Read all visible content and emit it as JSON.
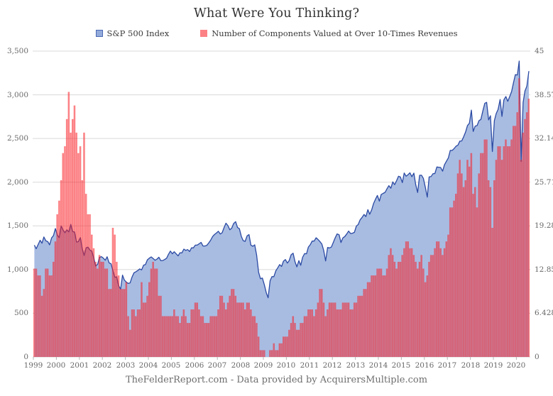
{
  "title": "What Were You Thinking?",
  "footer": "TheFelderReport.com - Data provided by AcquirersMultiple.com",
  "legend": {
    "items": [
      {
        "label": "S&P 500 Index",
        "swatch_fill": "#93abdb",
        "swatch_border": "#4c69b4"
      },
      {
        "label": "Number of Components Valued at Over 10-Times Revenues",
        "swatch_fill": "#fb8185",
        "swatch_border": "#fb8185"
      }
    ]
  },
  "colors": {
    "area_fill": "#a8bce2",
    "area_line": "#2b4aa3",
    "bar_fill": "rgba(249,28,34,0.55)",
    "grid": "#d9d9d9",
    "axis_tick": "#b5b5b5",
    "label_text": "#696969"
  },
  "chart_data": {
    "type": "combo",
    "title": "What Were You Thinking?",
    "x_start_year": 1999,
    "x_interval": "monthly",
    "x_axis": {
      "ticks": [
        1999,
        2000,
        2001,
        2002,
        2003,
        2004,
        2005,
        2006,
        2007,
        2008,
        2009,
        2010,
        2011,
        2012,
        2013,
        2014,
        2015,
        2016,
        2017,
        2018,
        2019,
        2020
      ]
    },
    "left_axis": {
      "min": 0,
      "max": 3500,
      "step": 500,
      "series": "S&P 500 Index"
    },
    "right_axis": {
      "min": 0,
      "max": 45,
      "step": 5,
      "series": "Number of Components Valued at Over 10-Times Revenues"
    },
    "grid": true,
    "legend_position": "top",
    "series": [
      {
        "name": "S&P 500 Index",
        "type": "area",
        "axis": "left",
        "values": [
          1280,
          1238,
          1286,
          1335,
          1302,
          1373,
          1329,
          1320,
          1283,
          1363,
          1389,
          1469,
          1394,
          1366,
          1499,
          1452,
          1421,
          1455,
          1431,
          1518,
          1436,
          1429,
          1315,
          1320,
          1366,
          1240,
          1160,
          1249,
          1256,
          1224,
          1211,
          1134,
          1041,
          1060,
          1139,
          1148,
          1130,
          1107,
          1147,
          1077,
          1067,
          990,
          912,
          916,
          815,
          777,
          936,
          880,
          856,
          841,
          848,
          917,
          964,
          975,
          990,
          1008,
          996,
          1051,
          1058,
          1112,
          1131,
          1145,
          1126,
          1107,
          1121,
          1141,
          1102,
          1104,
          1115,
          1130,
          1174,
          1212,
          1181,
          1204,
          1181,
          1157,
          1192,
          1191,
          1234,
          1220,
          1229,
          1207,
          1249,
          1248,
          1280,
          1281,
          1295,
          1311,
          1270,
          1270,
          1277,
          1304,
          1336,
          1378,
          1401,
          1418,
          1438,
          1407,
          1421,
          1482,
          1531,
          1503,
          1455,
          1474,
          1527,
          1549,
          1481,
          1468,
          1379,
          1331,
          1323,
          1386,
          1400,
          1280,
          1267,
          1283,
          1166,
          969,
          896,
          903,
          826,
          735,
          677,
          873,
          919,
          919,
          987,
          1021,
          1057,
          1036,
          1096,
          1115,
          1074,
          1104,
          1169,
          1187,
          1089,
          1031,
          1102,
          1049,
          1141,
          1183,
          1181,
          1258,
          1286,
          1327,
          1326,
          1364,
          1345,
          1321,
          1292,
          1219,
          1099,
          1253,
          1247,
          1258,
          1312,
          1366,
          1408,
          1398,
          1310,
          1362,
          1379,
          1407,
          1441,
          1412,
          1416,
          1426,
          1498,
          1515,
          1569,
          1598,
          1631,
          1606,
          1686,
          1633,
          1682,
          1757,
          1806,
          1848,
          1783,
          1859,
          1872,
          1884,
          1924,
          1960,
          1931,
          2003,
          1972,
          2018,
          2068,
          2059,
          1995,
          2105,
          2068,
          2086,
          2107,
          2063,
          2104,
          1972,
          1882,
          2079,
          2080,
          2044,
          1940,
          1829,
          2060,
          2065,
          2097,
          2099,
          2174,
          2171,
          2168,
          2126,
          2199,
          2239,
          2279,
          2364,
          2363,
          2384,
          2412,
          2423,
          2470,
          2472,
          2519,
          2575,
          2648,
          2674,
          2824,
          2581,
          2641,
          2648,
          2705,
          2718,
          2816,
          2902,
          2914,
          2712,
          2760,
          2351,
          2704,
          2785,
          2834,
          2946,
          2752,
          2942,
          2980,
          2926,
          2977,
          3038,
          3141,
          3231,
          3226,
          3386,
          2237,
          2912,
          3044,
          3100,
          3271
        ]
      },
      {
        "name": "Number of Components Valued at Over 10-Times Revenues",
        "type": "bar",
        "axis": "right",
        "values": [
          13,
          13,
          12,
          12,
          9,
          10,
          13,
          13,
          12,
          12,
          14,
          17,
          21,
          23,
          26,
          30,
          31,
          35,
          39,
          33,
          35,
          37,
          33,
          30,
          31,
          26,
          33,
          24,
          21,
          21,
          18,
          16,
          14,
          13,
          15,
          14,
          14,
          13,
          13,
          10,
          10,
          19,
          18,
          14,
          12,
          10,
          10,
          10,
          11,
          6,
          4,
          7,
          7,
          6,
          7,
          7,
          11,
          8,
          8,
          9,
          11,
          13,
          14,
          13,
          13,
          9,
          9,
          6,
          6,
          6,
          6,
          6,
          6,
          7,
          6,
          6,
          5,
          6,
          7,
          6,
          5,
          5,
          7,
          7,
          8,
          8,
          7,
          6,
          6,
          5,
          5,
          5,
          6,
          6,
          6,
          6,
          7,
          9,
          9,
          8,
          7,
          8,
          9,
          10,
          10,
          9,
          8,
          8,
          8,
          8,
          7,
          8,
          8,
          7,
          6,
          6,
          5,
          3,
          1,
          1,
          1,
          0,
          0,
          1,
          1,
          2,
          1,
          1,
          2,
          2,
          3,
          3,
          3,
          4,
          5,
          6,
          5,
          4,
          4,
          5,
          5,
          6,
          6,
          7,
          7,
          7,
          6,
          7,
          8,
          10,
          10,
          8,
          6,
          7,
          8,
          8,
          8,
          8,
          7,
          7,
          7,
          8,
          8,
          8,
          8,
          7,
          7,
          8,
          8,
          9,
          9,
          9,
          10,
          10,
          11,
          11,
          12,
          12,
          12,
          13,
          13,
          13,
          12,
          12,
          13,
          15,
          16,
          15,
          14,
          13,
          14,
          14,
          15,
          16,
          17,
          17,
          16,
          16,
          15,
          14,
          13,
          14,
          15,
          13,
          11,
          12,
          14,
          15,
          15,
          16,
          17,
          17,
          16,
          15,
          16,
          17,
          18,
          22,
          22,
          23,
          24,
          27,
          29,
          27,
          25,
          26,
          29,
          28,
          30,
          24,
          25,
          22,
          27,
          30,
          30,
          32,
          32,
          26,
          25,
          19,
          26,
          29,
          31,
          31,
          29,
          31,
          32,
          31,
          31,
          32,
          34,
          34,
          36,
          41,
          29,
          33,
          35,
          36,
          38
        ]
      }
    ]
  }
}
